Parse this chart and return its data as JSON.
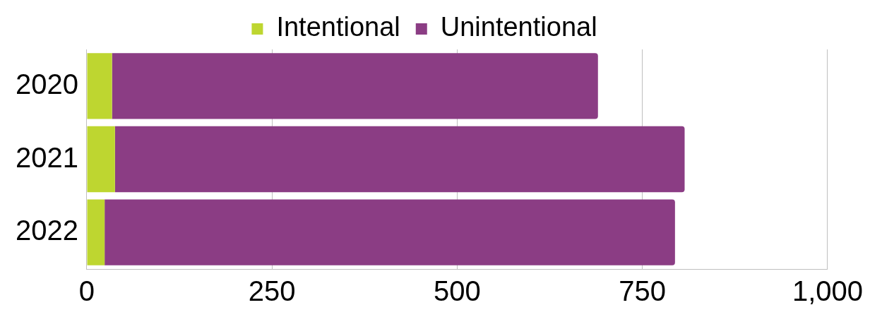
{
  "chart_data": {
    "type": "bar",
    "orientation": "horizontal",
    "stacked": true,
    "categories": [
      "2020",
      "2021",
      "2022"
    ],
    "series": [
      {
        "name": "Intentional",
        "color": "#bed630",
        "values": [
          34,
          38,
          24
        ]
      },
      {
        "name": "Unintentional",
        "color": "#8b3d84",
        "values": [
          656,
          769,
          770
        ]
      }
    ],
    "xlim": [
      0,
      1000
    ],
    "xticks": [
      0,
      250,
      500,
      750,
      {
        "value": 1000,
        "label": "1,000"
      }
    ],
    "grid": "x",
    "legend": "top"
  }
}
